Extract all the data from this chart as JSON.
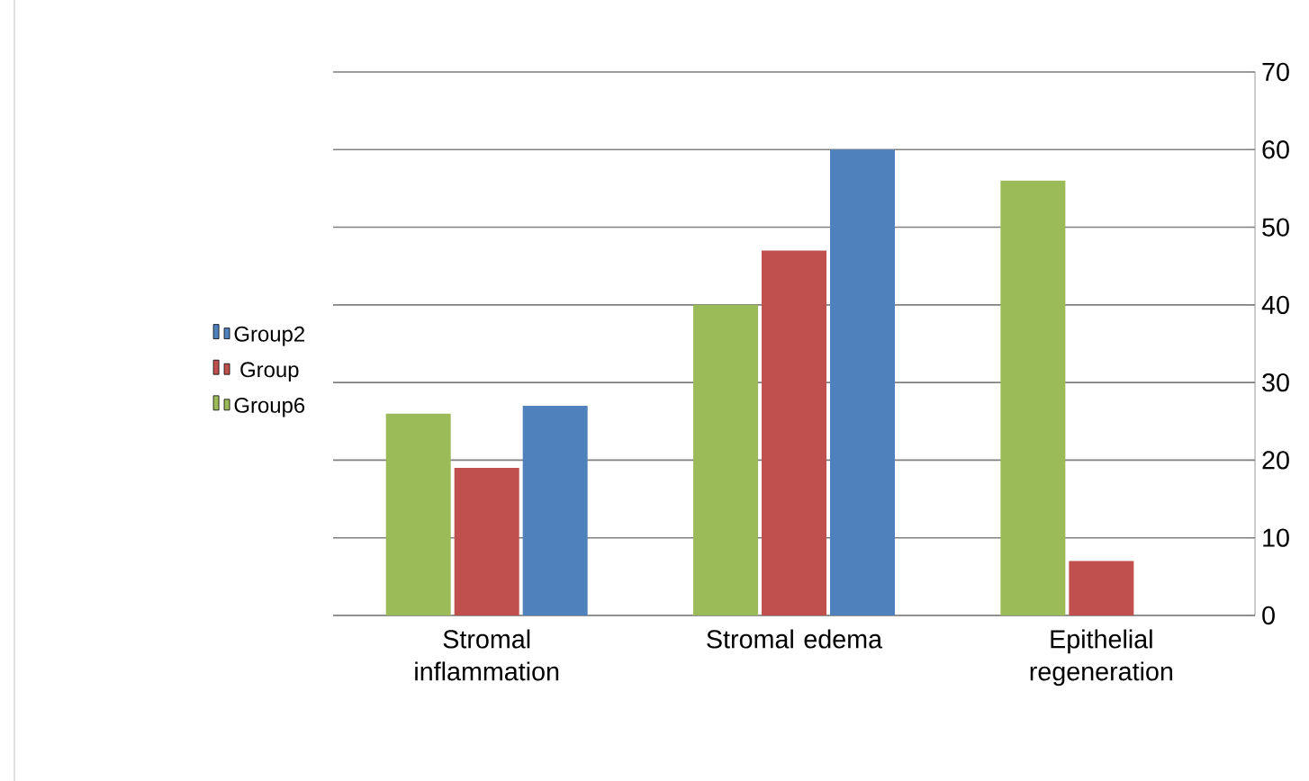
{
  "chart_data": {
    "type": "bar",
    "categories": [
      "Stromal inflammation",
      "Stromal edema",
      "Epithelial regeneration"
    ],
    "series": [
      {
        "name": "Group6",
        "color": "#9bbb59",
        "values": [
          26,
          40,
          56
        ]
      },
      {
        "name": "Group",
        "color": "#c0504d",
        "values": [
          19,
          47,
          7
        ]
      },
      {
        "name": "Group2",
        "color": "#4f81bd",
        "values": [
          27,
          60,
          null
        ]
      }
    ],
    "ylim": [
      0,
      70
    ],
    "yticks": [
      0,
      10,
      20,
      30,
      40,
      50,
      60,
      70
    ],
    "grid": "y",
    "legend": "left"
  }
}
